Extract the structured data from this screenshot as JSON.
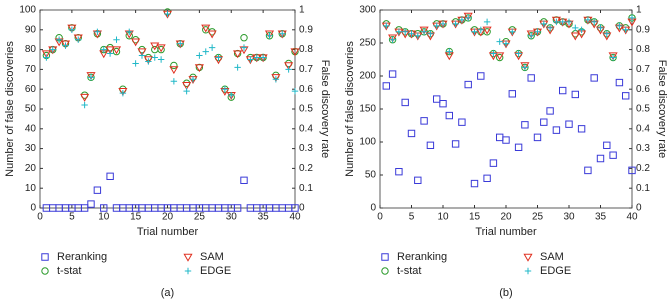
{
  "chart_data": [
    {
      "type": "scatter",
      "caption": "(a)",
      "xlabel": "Trial number",
      "ylabel": "Number of false discoveries",
      "y2label": "False discovery rate",
      "x": [
        1,
        2,
        3,
        4,
        5,
        6,
        7,
        8,
        9,
        10,
        11,
        12,
        13,
        14,
        15,
        16,
        17,
        18,
        19,
        20,
        21,
        22,
        23,
        24,
        25,
        26,
        27,
        28,
        29,
        30,
        31,
        32,
        33,
        34,
        35,
        36,
        37,
        38,
        39,
        40
      ],
      "xlim": [
        0,
        40
      ],
      "xticks": [
        0,
        5,
        10,
        15,
        20,
        25,
        30,
        35,
        40
      ],
      "ylim": [
        0,
        100
      ],
      "yticks": [
        0,
        10,
        20,
        30,
        40,
        50,
        60,
        70,
        80,
        90,
        100
      ],
      "y2lim": [
        0,
        1
      ],
      "y2ticks": [
        0,
        0.1,
        0.2,
        0.3,
        0.4,
        0.5,
        0.6,
        0.7,
        0.8,
        0.9,
        1
      ],
      "series": [
        {
          "name": "Reranking",
          "color": "#3a3ad8",
          "marker": "square",
          "axis": "y",
          "values": [
            0,
            0,
            0,
            0,
            0,
            0,
            0,
            2,
            9,
            0,
            16,
            0,
            0,
            0,
            0,
            0,
            0,
            0,
            0,
            0,
            0,
            0,
            0,
            0,
            0,
            0,
            0,
            0,
            0,
            0,
            0,
            14,
            0,
            0,
            0,
            0,
            0,
            0,
            0,
            0
          ]
        },
        {
          "name": "t-stat",
          "color": "#2a9a2a",
          "marker": "circle",
          "axis": "y2",
          "values": [
            0.77,
            0.8,
            0.86,
            0.83,
            0.91,
            0.86,
            0.57,
            0.66,
            0.88,
            0.8,
            0.81,
            0.79,
            0.6,
            0.87,
            0.85,
            0.8,
            0.76,
            0.8,
            0.8,
            0.99,
            0.72,
            0.83,
            0.63,
            0.66,
            0.71,
            0.9,
            0.89,
            0.76,
            0.6,
            0.56,
            0.78,
            0.86,
            0.76,
            0.76,
            0.76,
            0.87,
            0.67,
            0.88,
            0.73,
            0.79
          ]
        },
        {
          "name": "SAM",
          "color": "#e03020",
          "marker": "triangle",
          "axis": "y2",
          "values": [
            0.78,
            0.8,
            0.84,
            0.83,
            0.91,
            0.86,
            0.56,
            0.67,
            0.88,
            0.78,
            0.8,
            0.8,
            0.59,
            0.88,
            0.84,
            0.79,
            0.75,
            0.82,
            0.81,
            0.98,
            0.7,
            0.83,
            0.62,
            0.65,
            0.71,
            0.91,
            0.88,
            0.75,
            0.59,
            0.57,
            0.78,
            0.8,
            0.75,
            0.76,
            0.76,
            0.88,
            0.66,
            0.88,
            0.72,
            0.79
          ]
        },
        {
          "name": "EDGE",
          "color": "#20b8c8",
          "marker": "plus",
          "axis": "y2",
          "values": [
            0.76,
            0.8,
            0.85,
            0.82,
            0.9,
            0.85,
            0.52,
            0.66,
            0.89,
            0.8,
            0.78,
            0.85,
            0.58,
            0.89,
            0.73,
            0.77,
            0.74,
            0.76,
            0.75,
            0.98,
            0.64,
            0.83,
            0.59,
            0.65,
            0.77,
            0.79,
            0.81,
            0.76,
            0.6,
            0.57,
            0.71,
            0.81,
            0.75,
            0.76,
            0.76,
            0.87,
            0.65,
            0.88,
            0.7,
            0.59
          ]
        }
      ]
    },
    {
      "type": "scatter",
      "caption": "(b)",
      "xlabel": "Trial number",
      "ylabel": "Number of false discoveries",
      "y2label": "False discovery rate",
      "x": [
        1,
        2,
        3,
        4,
        5,
        6,
        7,
        8,
        9,
        10,
        11,
        12,
        13,
        14,
        15,
        16,
        17,
        18,
        19,
        20,
        21,
        22,
        23,
        24,
        25,
        26,
        27,
        28,
        29,
        30,
        31,
        32,
        33,
        34,
        35,
        36,
        37,
        38,
        39,
        40
      ],
      "xlim": [
        0,
        40
      ],
      "xticks": [
        0,
        5,
        10,
        15,
        20,
        25,
        30,
        35,
        40
      ],
      "ylim": [
        0,
        300
      ],
      "yticks": [
        0,
        50,
        100,
        150,
        200,
        250,
        300
      ],
      "y2lim": [
        0,
        1
      ],
      "y2ticks": [
        0,
        0.1,
        0.2,
        0.3,
        0.4,
        0.5,
        0.6,
        0.7,
        0.8,
        0.9,
        1
      ],
      "series": [
        {
          "name": "Reranking",
          "color": "#3a3ad8",
          "marker": "square",
          "axis": "y",
          "values": [
            185,
            203,
            55,
            160,
            113,
            42,
            132,
            95,
            165,
            158,
            140,
            97,
            130,
            187,
            37,
            200,
            45,
            68,
            107,
            103,
            173,
            92,
            126,
            197,
            107,
            130,
            147,
            118,
            178,
            127,
            172,
            120,
            57,
            197,
            75,
            95,
            80,
            190,
            170,
            57
          ]
        },
        {
          "name": "t-stat",
          "color": "#2a9a2a",
          "marker": "circle",
          "axis": "y2",
          "values": [
            0.93,
            0.85,
            0.9,
            0.89,
            0.88,
            0.88,
            0.89,
            0.88,
            0.93,
            0.93,
            0.79,
            0.94,
            0.95,
            0.96,
            0.9,
            0.89,
            0.89,
            0.78,
            0.76,
            0.84,
            0.9,
            0.78,
            0.71,
            0.87,
            0.89,
            0.94,
            0.91,
            0.95,
            0.94,
            0.93,
            0.88,
            0.89,
            0.95,
            0.94,
            0.91,
            0.88,
            0.76,
            0.92,
            0.91,
            0.96
          ]
        },
        {
          "name": "SAM",
          "color": "#e03020",
          "marker": "triangle",
          "axis": "y2",
          "values": [
            0.92,
            0.86,
            0.89,
            0.88,
            0.88,
            0.87,
            0.9,
            0.87,
            0.92,
            0.93,
            0.77,
            0.93,
            0.95,
            0.97,
            0.89,
            0.89,
            0.9,
            0.77,
            0.77,
            0.83,
            0.89,
            0.77,
            0.72,
            0.88,
            0.89,
            0.93,
            0.9,
            0.95,
            0.94,
            0.93,
            0.87,
            0.88,
            0.95,
            0.93,
            0.9,
            0.87,
            0.77,
            0.91,
            0.9,
            0.94
          ]
        },
        {
          "name": "EDGE",
          "color": "#20b8c8",
          "marker": "plus",
          "axis": "y2",
          "values": [
            0.92,
            0.85,
            0.89,
            0.89,
            0.88,
            0.87,
            0.89,
            0.88,
            0.92,
            0.93,
            0.79,
            0.93,
            0.95,
            0.96,
            0.89,
            0.9,
            0.94,
            0.78,
            0.84,
            0.83,
            0.89,
            0.78,
            0.71,
            0.87,
            0.89,
            0.93,
            0.91,
            0.94,
            0.94,
            0.94,
            0.91,
            0.9,
            0.95,
            0.94,
            0.91,
            0.88,
            0.76,
            0.92,
            0.9,
            0.96
          ]
        }
      ]
    }
  ]
}
